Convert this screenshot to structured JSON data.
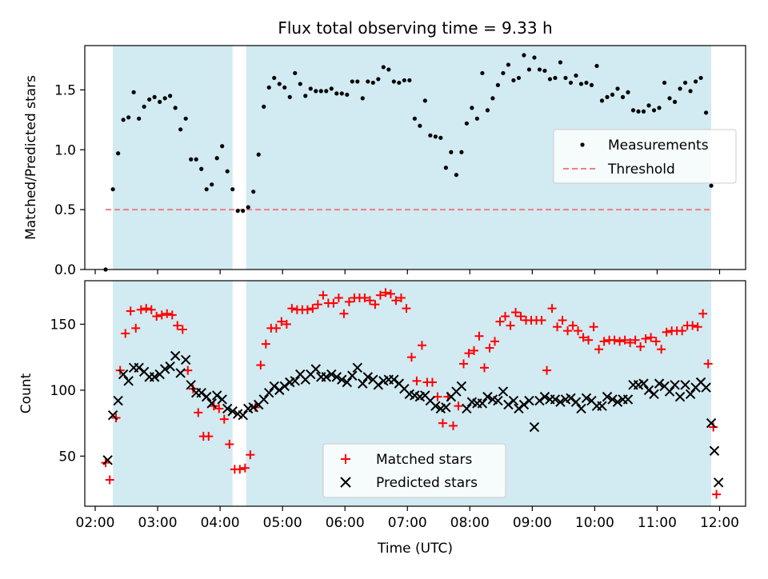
{
  "figure": {
    "title": "Flux total observing time = 9.33 h"
  },
  "colors": {
    "span": "#add8e6",
    "threshold": "#f08080",
    "matched": "#ff0000",
    "predicted": "#000000",
    "measurement": "#000000"
  },
  "chart_data": [
    {
      "type": "scatter",
      "ylabel": "Matched/Predicted stars",
      "xlabel": "",
      "ylim": [
        0,
        1.87
      ],
      "yticks": [
        "0.0",
        "0.5",
        "1.0",
        "1.5"
      ],
      "x_time_range": [
        "01:50",
        "12:25"
      ],
      "grid": false,
      "legend_position": "center-right",
      "shaded_intervals": [
        [
          "02:17",
          "04:12"
        ],
        [
          "04:25",
          "11:52"
        ]
      ],
      "threshold": {
        "name": "Threshold",
        "value": 0.5,
        "x_range": [
          "02:10",
          "11:52"
        ]
      },
      "series": [
        {
          "name": "Measurements",
          "marker": "dot",
          "x": [
            "02:10",
            "02:17",
            "02:22",
            "02:27",
            "02:32",
            "02:37",
            "02:42",
            "02:47",
            "02:52",
            "02:57",
            "03:02",
            "03:07",
            "03:12",
            "03:17",
            "03:22",
            "03:27",
            "03:32",
            "03:37",
            "03:42",
            "03:47",
            "03:52",
            "03:57",
            "04:02",
            "04:07",
            "04:12",
            "04:17",
            "04:22",
            "04:27",
            "04:32",
            "04:37",
            "04:42",
            "04:47",
            "04:52",
            "04:57",
            "05:02",
            "05:07",
            "05:12",
            "05:17",
            "05:22",
            "05:27",
            "05:32",
            "05:37",
            "05:42",
            "05:47",
            "05:52",
            "05:57",
            "06:02",
            "06:07",
            "06:12",
            "06:17",
            "06:22",
            "06:27",
            "06:32",
            "06:37",
            "06:42",
            "06:47",
            "06:52",
            "06:57",
            "07:02",
            "07:07",
            "07:12",
            "07:17",
            "07:22",
            "07:27",
            "07:32",
            "07:37",
            "07:42",
            "07:47",
            "07:52",
            "07:57",
            "08:02",
            "08:07",
            "08:12",
            "08:17",
            "08:22",
            "08:27",
            "08:32",
            "08:37",
            "08:42",
            "08:47",
            "08:52",
            "08:57",
            "09:02",
            "09:07",
            "09:12",
            "09:17",
            "09:22",
            "09:27",
            "09:32",
            "09:37",
            "09:42",
            "09:47",
            "09:52",
            "09:57",
            "10:02",
            "10:07",
            "10:12",
            "10:17",
            "10:22",
            "10:27",
            "10:32",
            "10:37",
            "10:42",
            "10:47",
            "10:52",
            "10:57",
            "11:02",
            "11:07",
            "11:12",
            "11:17",
            "11:22",
            "11:27",
            "11:32",
            "11:37",
            "11:42",
            "11:47",
            "11:52"
          ],
          "y": [
            0.0,
            0.67,
            0.97,
            1.25,
            1.27,
            1.48,
            1.26,
            1.36,
            1.42,
            1.44,
            1.4,
            1.43,
            1.45,
            1.35,
            1.17,
            1.26,
            0.92,
            0.92,
            0.84,
            0.67,
            0.71,
            0.93,
            1.03,
            0.82,
            0.67,
            0.49,
            0.49,
            0.52,
            0.65,
            0.96,
            1.36,
            1.52,
            1.6,
            1.55,
            1.52,
            1.44,
            1.64,
            1.55,
            1.45,
            1.51,
            1.49,
            1.49,
            1.49,
            1.51,
            1.47,
            1.47,
            1.46,
            1.57,
            1.57,
            1.43,
            1.57,
            1.56,
            1.59,
            1.69,
            1.67,
            1.57,
            1.56,
            1.58,
            1.58,
            1.26,
            1.2,
            1.41,
            1.12,
            1.11,
            1.1,
            0.85,
            0.98,
            0.79,
            0.98,
            1.22,
            1.35,
            1.26,
            1.64,
            1.33,
            1.43,
            1.54,
            1.64,
            1.71,
            1.58,
            1.6,
            1.79,
            1.67,
            1.77,
            1.67,
            1.66,
            1.59,
            1.6,
            1.73,
            1.6,
            1.56,
            1.62,
            1.55,
            1.56,
            1.54,
            1.7,
            1.41,
            1.44,
            1.46,
            1.51,
            1.44,
            1.48,
            1.33,
            1.32,
            1.32,
            1.37,
            1.33,
            1.35,
            1.56,
            1.43,
            1.4,
            1.51,
            1.56,
            1.49,
            1.57,
            1.6,
            1.31,
            0.7
          ]
        }
      ]
    },
    {
      "type": "scatter",
      "ylabel": "Count",
      "xlabel": "Time (UTC)",
      "ylim": [
        12,
        183
      ],
      "yticks": [
        "50",
        "100",
        "150"
      ],
      "x_time_range": [
        "01:50",
        "12:25"
      ],
      "xticks": [
        "02:00",
        "03:00",
        "04:00",
        "05:00",
        "06:00",
        "07:00",
        "08:00",
        "09:00",
        "10:00",
        "11:00",
        "12:00"
      ],
      "grid": false,
      "legend_position": "bottom-center",
      "shaded_intervals": [
        [
          "02:17",
          "04:12"
        ],
        [
          "04:25",
          "11:52"
        ]
      ],
      "series": [
        {
          "name": "Matched stars",
          "marker": "plus",
          "x": [
            "02:10",
            "02:14",
            "02:20",
            "02:24",
            "02:29",
            "02:34",
            "02:39",
            "02:44",
            "02:49",
            "02:54",
            "02:59",
            "03:04",
            "03:09",
            "03:14",
            "03:19",
            "03:24",
            "03:29",
            "03:34",
            "03:39",
            "03:44",
            "03:49",
            "03:54",
            "03:59",
            "04:04",
            "04:09",
            "04:14",
            "04:19",
            "04:24",
            "04:29",
            "04:34",
            "04:39",
            "04:44",
            "04:49",
            "04:54",
            "04:59",
            "05:04",
            "05:09",
            "05:14",
            "05:19",
            "05:24",
            "05:29",
            "05:34",
            "05:39",
            "05:44",
            "05:49",
            "05:54",
            "05:59",
            "06:04",
            "06:09",
            "06:14",
            "06:19",
            "06:24",
            "06:29",
            "06:34",
            "06:39",
            "06:44",
            "06:49",
            "06:54",
            "06:59",
            "07:04",
            "07:09",
            "07:14",
            "07:19",
            "07:24",
            "07:29",
            "07:34",
            "07:39",
            "07:44",
            "07:49",
            "07:54",
            "07:59",
            "08:04",
            "08:09",
            "08:14",
            "08:19",
            "08:24",
            "08:29",
            "08:34",
            "08:39",
            "08:44",
            "08:49",
            "08:54",
            "08:59",
            "09:04",
            "09:09",
            "09:14",
            "09:19",
            "09:24",
            "09:29",
            "09:34",
            "09:39",
            "09:44",
            "09:49",
            "09:54",
            "09:59",
            "10:04",
            "10:09",
            "10:14",
            "10:19",
            "10:24",
            "10:29",
            "10:34",
            "10:39",
            "10:44",
            "10:49",
            "10:54",
            "10:59",
            "11:04",
            "11:09",
            "11:14",
            "11:19",
            "11:24",
            "11:29",
            "11:34",
            "11:39",
            "11:44",
            "11:49",
            "11:54",
            "11:57"
          ],
          "y": [
            45,
            32,
            79,
            115,
            143,
            160,
            147,
            161,
            162,
            161,
            156,
            157,
            158,
            157,
            149,
            146,
            115,
            101,
            83,
            65,
            65,
            88,
            86,
            78,
            59,
            40,
            40,
            41,
            51,
            87,
            119,
            135,
            147,
            147,
            152,
            150,
            162,
            161,
            161,
            161,
            162,
            165,
            172,
            166,
            166,
            170,
            158,
            167,
            170,
            170,
            170,
            168,
            165,
            172,
            174,
            173,
            168,
            170,
            162,
            125,
            107,
            134,
            106,
            106,
            95,
            75,
            95,
            73,
            88,
            120,
            128,
            130,
            141,
            117,
            132,
            137,
            152,
            156,
            149,
            159,
            156,
            153,
            153,
            153,
            153,
            115,
            162,
            148,
            153,
            145,
            149,
            145,
            140,
            138,
            148,
            131,
            137,
            138,
            138,
            137,
            138,
            136,
            138,
            133,
            139,
            140,
            137,
            131,
            144,
            145,
            145,
            145,
            149,
            149,
            148,
            158,
            120,
            72,
            21
          ]
        },
        {
          "name": "Predicted stars",
          "marker": "x",
          "x": [
            "02:12",
            "02:17",
            "02:22",
            "02:27",
            "02:32",
            "02:37",
            "02:42",
            "02:47",
            "02:52",
            "02:57",
            "03:02",
            "03:07",
            "03:12",
            "03:17",
            "03:22",
            "03:27",
            "03:32",
            "03:37",
            "03:42",
            "03:47",
            "03:52",
            "03:57",
            "04:02",
            "04:07",
            "04:12",
            "04:17",
            "04:22",
            "04:27",
            "04:32",
            "04:37",
            "04:42",
            "04:47",
            "04:52",
            "04:57",
            "05:02",
            "05:07",
            "05:12",
            "05:17",
            "05:22",
            "05:27",
            "05:32",
            "05:37",
            "05:42",
            "05:47",
            "05:52",
            "05:57",
            "06:02",
            "06:07",
            "06:12",
            "06:17",
            "06:22",
            "06:27",
            "06:32",
            "06:37",
            "06:42",
            "06:47",
            "06:52",
            "06:57",
            "07:02",
            "07:07",
            "07:12",
            "07:17",
            "07:22",
            "07:27",
            "07:32",
            "07:37",
            "07:42",
            "07:47",
            "07:52",
            "07:57",
            "08:02",
            "08:07",
            "08:12",
            "08:17",
            "08:22",
            "08:27",
            "08:32",
            "08:37",
            "08:42",
            "08:47",
            "08:52",
            "08:57",
            "09:02",
            "09:07",
            "09:12",
            "09:17",
            "09:22",
            "09:27",
            "09:32",
            "09:37",
            "09:42",
            "09:47",
            "09:52",
            "09:57",
            "10:02",
            "10:07",
            "10:12",
            "10:17",
            "10:22",
            "10:27",
            "10:32",
            "10:37",
            "10:42",
            "10:47",
            "10:52",
            "10:57",
            "11:02",
            "11:07",
            "11:12",
            "11:17",
            "11:22",
            "11:27",
            "11:32",
            "11:37",
            "11:42",
            "11:47",
            "11:52",
            "11:55",
            "11:59"
          ],
          "y": [
            47,
            81,
            92,
            112,
            107,
            117,
            117,
            114,
            110,
            110,
            112,
            116,
            118,
            126,
            113,
            123,
            104,
            98,
            98,
            95,
            90,
            96,
            93,
            86,
            84,
            82,
            81,
            86,
            87,
            89,
            93,
            98,
            103,
            100,
            103,
            106,
            107,
            112,
            108,
            112,
            116,
            110,
            110,
            112,
            110,
            108,
            106,
            111,
            117,
            105,
            110,
            108,
            104,
            107,
            108,
            108,
            105,
            101,
            97,
            96,
            95,
            96,
            92,
            88,
            86,
            87,
            95,
            99,
            103,
            86,
            91,
            90,
            90,
            95,
            93,
            92,
            99,
            89,
            92,
            86,
            89,
            92,
            72,
            92,
            95,
            93,
            93,
            91,
            93,
            94,
            91,
            86,
            94,
            92,
            88,
            88,
            95,
            93,
            91,
            93,
            93,
            104,
            104,
            105,
            100,
            97,
            105,
            103,
            99,
            104,
            95,
            104,
            97,
            102,
            106,
            102,
            75,
            54,
            30
          ]
        }
      ]
    }
  ]
}
